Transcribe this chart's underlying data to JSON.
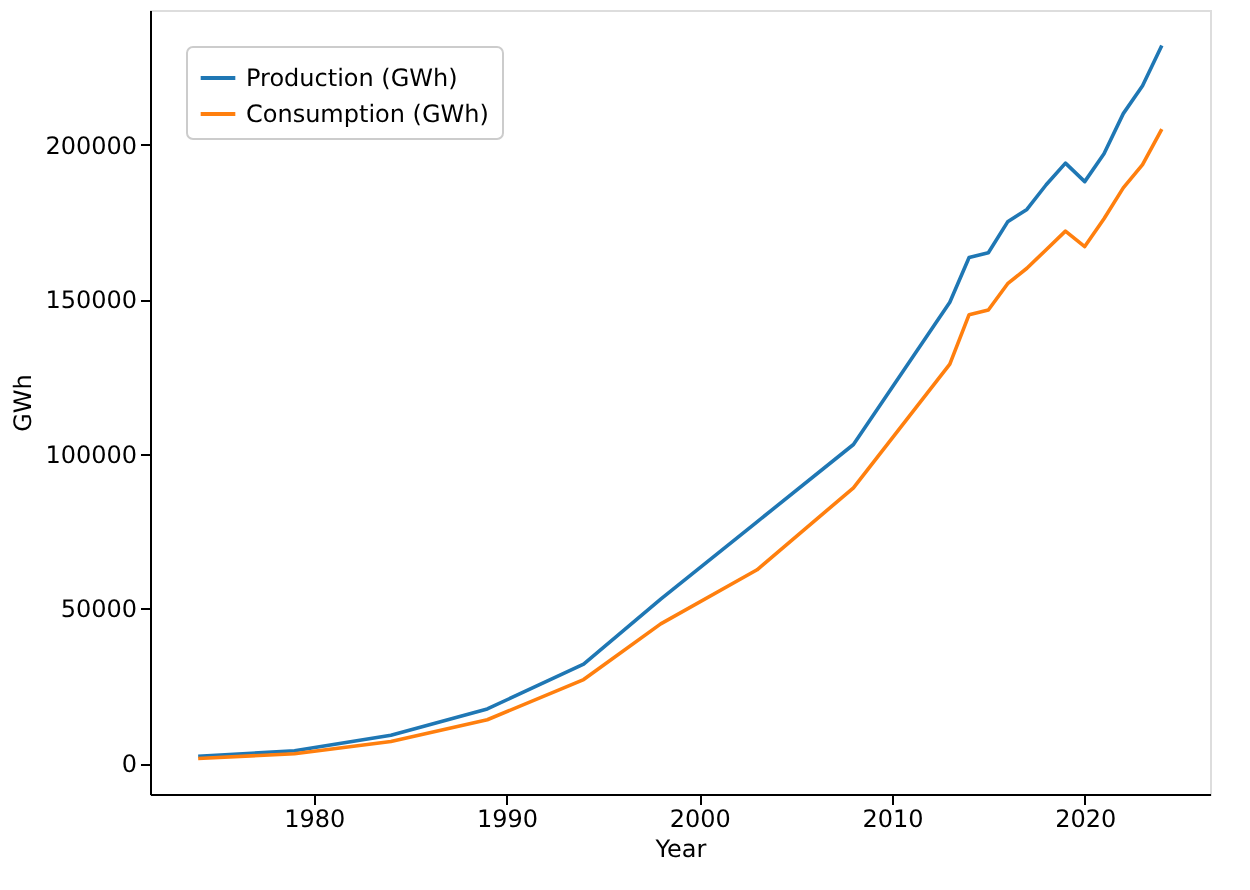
{
  "chart_data": {
    "type": "line",
    "xlabel": "Year",
    "ylabel": "GWh",
    "x": [
      1974,
      1979,
      1984,
      1989,
      1994,
      1998,
      2003,
      2008,
      2013,
      2014,
      2015,
      2016,
      2017,
      2018,
      2019,
      2020,
      2021,
      2022,
      2023,
      2024
    ],
    "series": [
      {
        "name": "Production (GWh)",
        "color": "#1f77b4",
        "values": [
          2200,
          4000,
          9000,
          17500,
          32000,
          53000,
          78000,
          103000,
          149000,
          163500,
          165000,
          175000,
          179000,
          187000,
          194000,
          188000,
          197000,
          210000,
          219000,
          232000
        ]
      },
      {
        "name": "Consumption (GWh)",
        "color": "#ff7f0e",
        "values": [
          1500,
          3000,
          7000,
          14000,
          27000,
          45000,
          62500,
          89000,
          129000,
          145000,
          146500,
          155000,
          160000,
          166000,
          172000,
          167000,
          176000,
          186000,
          193500,
          205000
        ]
      }
    ],
    "xlim": [
      1971.5,
      2026.5
    ],
    "xticks": [
      1980,
      1990,
      2000,
      2010,
      2020
    ],
    "ylim": [
      -10000,
      243500
    ],
    "yticks": [
      0,
      50000,
      100000,
      150000,
      200000
    ],
    "grid": false,
    "legend": "top left",
    "marker": "none",
    "line_style": "solid"
  }
}
